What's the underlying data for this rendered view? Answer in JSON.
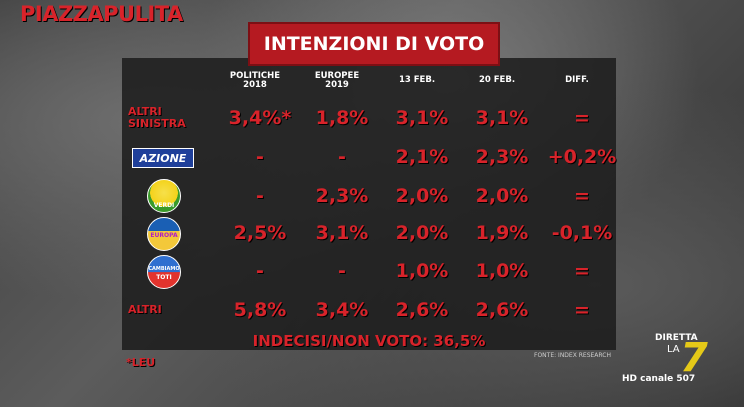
{
  "brand": "PIAZZAPULITA",
  "title": "INTENZIONI DI VOTO",
  "columns": [
    {
      "l1": "POLITICHE",
      "l2": "2018"
    },
    {
      "l1": "EUROPEE",
      "l2": "2019"
    },
    {
      "l1": "13 FEB.",
      "l2": ""
    },
    {
      "l1": "20 FEB.",
      "l2": ""
    },
    {
      "l1": "DIFF.",
      "l2": ""
    }
  ],
  "rows": [
    {
      "party": "ALTRI SINISTRA",
      "label_l1": "ALTRI",
      "label_l2": "SINISTRA",
      "values": [
        "3,4%*",
        "1,8%",
        "3,1%",
        "3,1%",
        "="
      ]
    },
    {
      "party": "Azione",
      "logo_text": "AZIONE",
      "values": [
        "-",
        "-",
        "2,1%",
        "2,3%",
        "+0,2%"
      ]
    },
    {
      "party": "Verdi",
      "logo_text": "VERDI",
      "values": [
        "-",
        "2,3%",
        "2,0%",
        "2,0%",
        "="
      ]
    },
    {
      "party": "+Europa",
      "logo_text": "EUROPA",
      "values": [
        "2,5%",
        "3,1%",
        "2,0%",
        "1,9%",
        "-0,1%"
      ]
    },
    {
      "party": "Cambiamo! con Toti",
      "logo_text_l1": "CAMBIAMO",
      "logo_text_l2": "TOTI",
      "values": [
        "-",
        "-",
        "1,0%",
        "1,0%",
        "="
      ]
    },
    {
      "party": "ALTRI",
      "label_l1": "ALTRI",
      "values": [
        "5,8%",
        "3,4%",
        "2,6%",
        "2,6%",
        "="
      ]
    }
  ],
  "footer": "INDECISI/NON VOTO: 36,5%",
  "source": "FONTE: INDEX RESEARCH",
  "footnote": "*LEU",
  "channel": {
    "diretta": "DIRETTA",
    "la": "LA",
    "seven": "7",
    "hd": "HD canale 507"
  },
  "colors": {
    "accent": "#d8232a",
    "title_bg": "#b51a21",
    "panel": "#1c1c1c",
    "azione_bg": "#1f3f9a",
    "verdi_bg": "#f4d21a",
    "europa_bg": "#f3c83a",
    "la7_yellow": "#e5c918"
  }
}
